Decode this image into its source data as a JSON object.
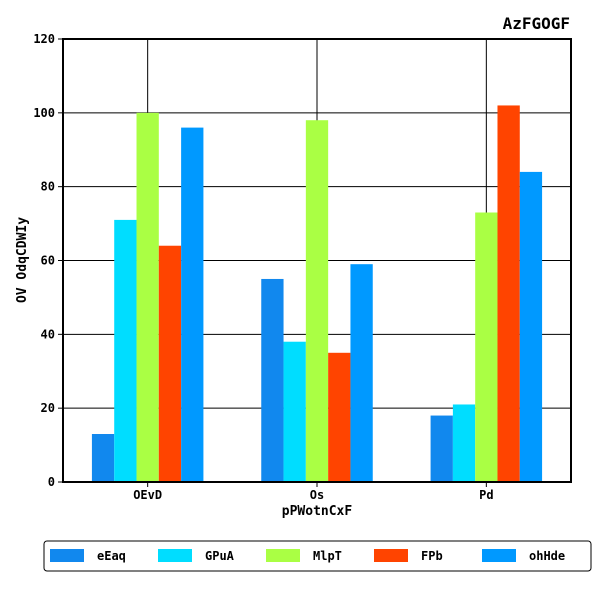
{
  "chart_data": {
    "type": "bar",
    "title": "AzFGOGF",
    "xlabel": "pPWotnCxF",
    "ylabel": "OV OdqCDWIy",
    "categories": [
      "OEvD",
      "Os",
      "Pd"
    ],
    "ylim": [
      0,
      120
    ],
    "yticks": [
      0,
      20,
      40,
      60,
      80,
      100,
      120
    ],
    "grid": true,
    "legend_position": "bottom",
    "series": [
      {
        "name": "eEaq",
        "color": "#1188ee",
        "values": [
          13,
          55,
          18
        ]
      },
      {
        "name": "GPuA",
        "color": "#00ddff",
        "values": [
          71,
          38,
          21
        ]
      },
      {
        "name": "MlpT",
        "color": "#aaff44",
        "values": [
          100,
          98,
          73
        ]
      },
      {
        "name": "FPb",
        "color": "#ff4400",
        "values": [
          64,
          35,
          102
        ]
      },
      {
        "name": "ohHde",
        "color": "#0099ff",
        "values": [
          96,
          59,
          84
        ]
      }
    ]
  }
}
